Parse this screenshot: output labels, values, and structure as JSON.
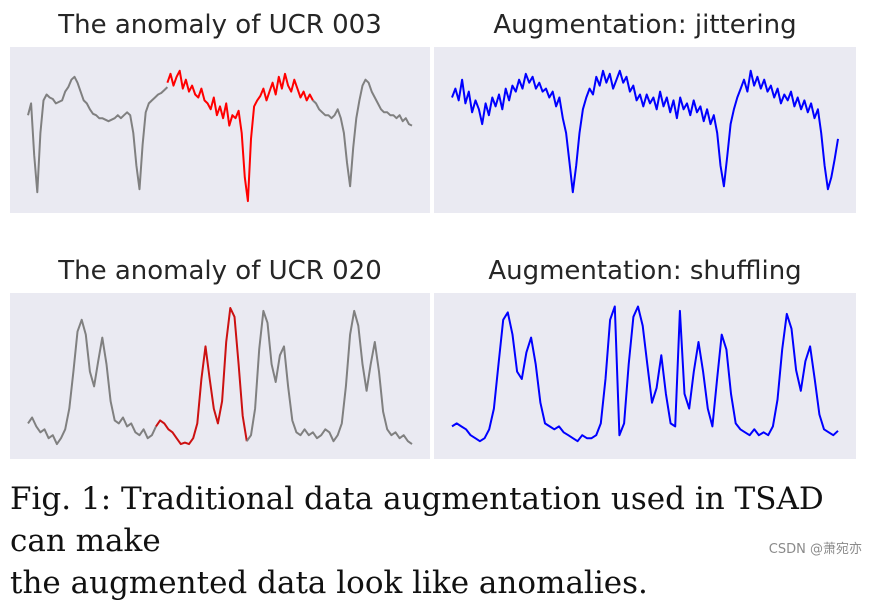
{
  "chart_data": [
    {
      "type": "line",
      "title": "The anomaly of UCR 003",
      "grid": false,
      "ylim": [
        0,
        1
      ],
      "series": [
        {
          "color": "#808080",
          "values": [
            0.62,
            0.7,
            0.35,
            0.1,
            0.5,
            0.72,
            0.76,
            0.74,
            0.73,
            0.7,
            0.71,
            0.72,
            0.78,
            0.81,
            0.86,
            0.88,
            0.84,
            0.78,
            0.72,
            0.7,
            0.66,
            0.63,
            0.62,
            0.6,
            0.6,
            0.59,
            0.58,
            0.59,
            0.6,
            0.62,
            0.6,
            0.62,
            0.64,
            0.62,
            0.5,
            0.28,
            0.12,
            0.42,
            0.64,
            0.7,
            0.72,
            0.74,
            0.76,
            0.77,
            0.79,
            0.81
          ]
        },
        {
          "color": "#ff0000",
          "values": [
            0.84,
            0.9,
            0.82,
            0.88,
            0.92,
            0.8,
            0.86,
            0.78,
            0.82,
            0.76,
            0.74,
            0.8,
            0.72,
            0.7,
            0.66,
            0.74,
            0.62,
            0.68,
            0.6,
            0.7,
            0.55,
            0.62,
            0.6,
            0.65,
            0.5,
            0.2,
            0.04,
            0.46,
            0.68,
            0.72,
            0.75,
            0.8,
            0.72,
            0.78,
            0.84,
            0.76,
            0.88,
            0.8,
            0.9,
            0.82,
            0.78,
            0.86,
            0.8,
            0.74,
            0.78,
            0.72,
            0.76,
            0.72
          ]
        },
        {
          "color": "#808080",
          "values": [
            0.72,
            0.7,
            0.66,
            0.64,
            0.62,
            0.62,
            0.6,
            0.62,
            0.66,
            0.6,
            0.5,
            0.3,
            0.14,
            0.4,
            0.6,
            0.72,
            0.82,
            0.86,
            0.84,
            0.78,
            0.74,
            0.7,
            0.66,
            0.64,
            0.64,
            0.62,
            0.62,
            0.6,
            0.62,
            0.58,
            0.6,
            0.56,
            0.55
          ]
        }
      ]
    },
    {
      "type": "line",
      "title": "Augmentation: jittering",
      "grid": false,
      "ylim": [
        0,
        1
      ],
      "series": [
        {
          "color": "#0000ff",
          "values": [
            0.74,
            0.8,
            0.72,
            0.86,
            0.7,
            0.78,
            0.64,
            0.72,
            0.66,
            0.56,
            0.7,
            0.62,
            0.74,
            0.68,
            0.76,
            0.66,
            0.8,
            0.72,
            0.82,
            0.78,
            0.86,
            0.8,
            0.9,
            0.84,
            0.88,
            0.8,
            0.84,
            0.78,
            0.8,
            0.74,
            0.78,
            0.68,
            0.74,
            0.6,
            0.5,
            0.3,
            0.1,
            0.28,
            0.5,
            0.66,
            0.74,
            0.8,
            0.76,
            0.88,
            0.82,
            0.92,
            0.84,
            0.9,
            0.8,
            0.86,
            0.92,
            0.84,
            0.88,
            0.78,
            0.82,
            0.72,
            0.76,
            0.68,
            0.76,
            0.7,
            0.74,
            0.66,
            0.78,
            0.68,
            0.74,
            0.64,
            0.72,
            0.6,
            0.74,
            0.66,
            0.7,
            0.62,
            0.72,
            0.64,
            0.68,
            0.58,
            0.66,
            0.56,
            0.62,
            0.5,
            0.28,
            0.14,
            0.34,
            0.56,
            0.66,
            0.74,
            0.8,
            0.86,
            0.78,
            0.92,
            0.82,
            0.88,
            0.8,
            0.86,
            0.78,
            0.82,
            0.74,
            0.8,
            0.7,
            0.76,
            0.72,
            0.78,
            0.68,
            0.74,
            0.66,
            0.72,
            0.64,
            0.7,
            0.6,
            0.66,
            0.5,
            0.28,
            0.12,
            0.2,
            0.32,
            0.46
          ]
        }
      ]
    },
    {
      "type": "line",
      "title": "The anomaly of UCR 020",
      "grid": false,
      "ylim": [
        0,
        1
      ],
      "series": [
        {
          "color": "#808080",
          "values": [
            0.2,
            0.24,
            0.18,
            0.14,
            0.16,
            0.1,
            0.12,
            0.06,
            0.1,
            0.16,
            0.3,
            0.55,
            0.82,
            0.9,
            0.8,
            0.55,
            0.45,
            0.62,
            0.78,
            0.6,
            0.35,
            0.22,
            0.2,
            0.24,
            0.18,
            0.2,
            0.14,
            0.12,
            0.16,
            0.1,
            0.12,
            0.18
          ]
        },
        {
          "color": "#cc1111",
          "values": [
            0.18,
            0.22,
            0.2,
            0.16,
            0.14,
            0.1,
            0.06,
            0.07,
            0.06,
            0.1,
            0.2,
            0.5,
            0.72,
            0.5,
            0.3,
            0.2,
            0.35,
            0.75,
            0.98,
            0.92,
            0.6,
            0.25,
            0.08
          ]
        },
        {
          "color": "#808080",
          "values": [
            0.08,
            0.12,
            0.3,
            0.7,
            0.96,
            0.88,
            0.6,
            0.48,
            0.66,
            0.72,
            0.45,
            0.22,
            0.14,
            0.12,
            0.16,
            0.12,
            0.14,
            0.1,
            0.12,
            0.16,
            0.14,
            0.08,
            0.12,
            0.2,
            0.45,
            0.8,
            0.96,
            0.86,
            0.6,
            0.42,
            0.6,
            0.75,
            0.55,
            0.28,
            0.16,
            0.12,
            0.14,
            0.1,
            0.12,
            0.08,
            0.06
          ]
        }
      ]
    },
    {
      "type": "line",
      "title": "Augmentation: shuffling",
      "grid": false,
      "ylim": [
        0,
        1
      ],
      "series": [
        {
          "color": "#0000ff",
          "values": [
            0.18,
            0.2,
            0.18,
            0.16,
            0.12,
            0.1,
            0.08,
            0.1,
            0.16,
            0.3,
            0.6,
            0.9,
            0.95,
            0.8,
            0.55,
            0.5,
            0.68,
            0.78,
            0.6,
            0.34,
            0.2,
            0.18,
            0.16,
            0.18,
            0.14,
            0.12,
            0.1,
            0.08,
            0.12,
            0.1,
            0.1,
            0.12,
            0.2,
            0.5,
            0.9,
            0.99,
            0.12,
            0.2,
            0.6,
            0.92,
            0.99,
            0.86,
            0.6,
            0.34,
            0.44,
            0.66,
            0.4,
            0.2,
            0.18,
            0.96,
            0.4,
            0.3,
            0.55,
            0.75,
            0.55,
            0.3,
            0.18,
            0.5,
            0.8,
            0.7,
            0.4,
            0.2,
            0.16,
            0.14,
            0.12,
            0.16,
            0.12,
            0.14,
            0.12,
            0.18,
            0.36,
            0.7,
            0.94,
            0.84,
            0.56,
            0.42,
            0.62,
            0.72,
            0.5,
            0.26,
            0.16,
            0.14,
            0.12,
            0.15
          ]
        }
      ]
    }
  ],
  "caption": {
    "line1": "Fig. 1: Traditional data augmentation used in TSAD can make",
    "line2": "the augmented data look like anomalies."
  },
  "watermark": "CSDN @萧宛亦"
}
